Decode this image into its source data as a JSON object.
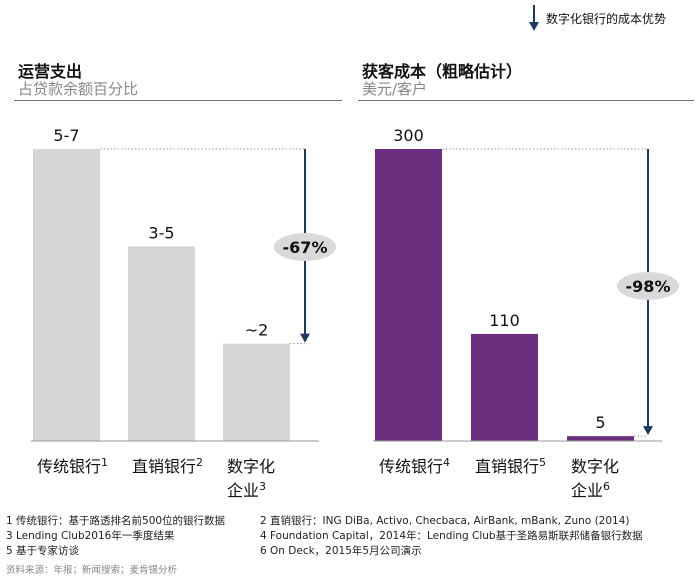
{
  "legend": {
    "label": "数字化银行的成本优势"
  },
  "chart_data": [
    {
      "type": "bar",
      "title": "运营支出",
      "subtitle": "占贷款余额百分比",
      "categories": [
        "传统银行",
        "直销银行",
        "数字化企业"
      ],
      "category_lines": [
        [
          "传统银行"
        ],
        [
          "直销银行"
        ],
        [
          "数字化",
          "企业"
        ]
      ],
      "footnote_marks": [
        "1",
        "2",
        "3"
      ],
      "values": [
        6,
        4,
        2
      ],
      "data_labels": [
        "5-7",
        "3-5",
        "~2"
      ],
      "ylim": [
        0,
        6
      ],
      "bar_color": "#d6d6d6",
      "annotation": "-67%"
    },
    {
      "type": "bar",
      "title": "获客成本（粗略估计）",
      "subtitle": "美元/客户",
      "categories": [
        "传统银行",
        "直销银行",
        "数字化企业"
      ],
      "category_lines": [
        [
          "传统银行"
        ],
        [
          "直销银行"
        ],
        [
          "数字化",
          "企业"
        ]
      ],
      "footnote_marks": [
        "4",
        "5",
        "6"
      ],
      "values": [
        300,
        110,
        5
      ],
      "data_labels": [
        "300",
        "110",
        "5"
      ],
      "ylim": [
        0,
        300
      ],
      "bar_color": "#6a2f7f",
      "annotation": "-98%"
    }
  ],
  "footnotes": [
    [
      "1 传统银行：基于路透排名前500位的银行数据",
      "2 直销银行：ING DiBa, Activo, Checbaca, AirBank, mBank, Zuno (2014)"
    ],
    [
      "3 Lending Club2016年一季度结果",
      "4 Foundation Capital，2014年：Lending Club基于圣路易斯联邦储备银行数据"
    ],
    [
      "5 基于专家访谈",
      "6 On Deck，2015年5月公司演示"
    ]
  ],
  "source": "资料来源：年报；新闻搜索；麦肯锡分析",
  "colors": {
    "arrow": "#1f3a5f",
    "badge": "#d9d9d9"
  }
}
